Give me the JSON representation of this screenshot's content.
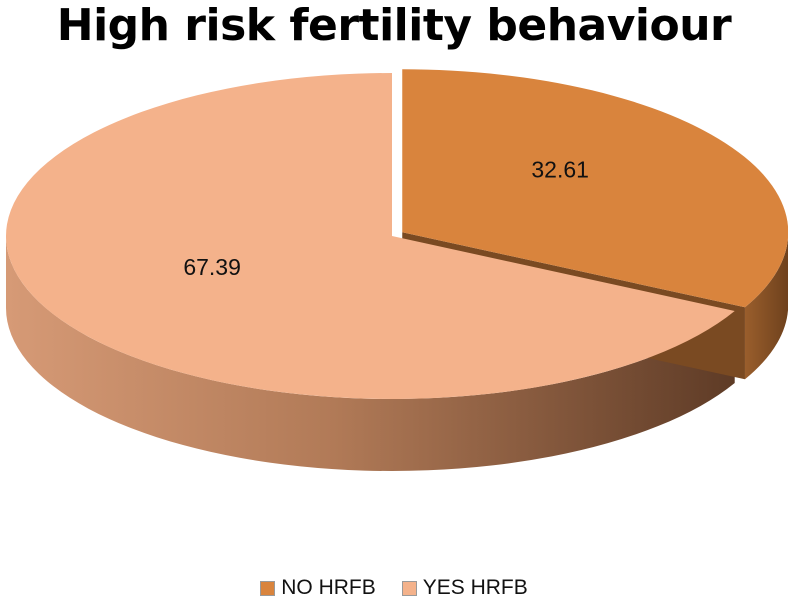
{
  "chart_data": {
    "type": "pie",
    "title": "High risk fertility behaviour",
    "categories": [
      "NO HRFB",
      "YES HRFB"
    ],
    "values": [
      32.61,
      67.39
    ],
    "data_labels": [
      "32.61",
      "67.39"
    ],
    "colors": [
      "#d9843d",
      "#f4b28b"
    ],
    "side_colors": [
      "#8a5224",
      "#a56a48"
    ],
    "exploded": [
      "NO HRFB"
    ],
    "style": "3d",
    "legend_position": "bottom"
  }
}
